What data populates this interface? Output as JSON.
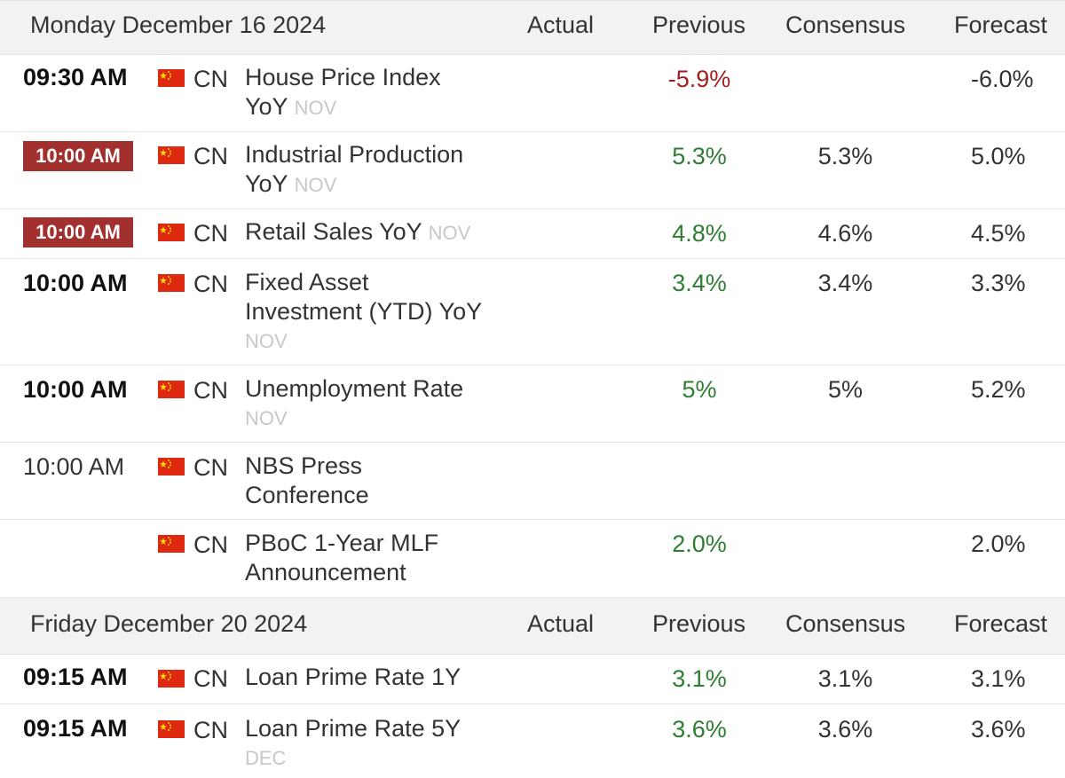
{
  "columns": {
    "actual": "Actual",
    "previous": "Previous",
    "consensus": "Consensus",
    "forecast": "Forecast"
  },
  "colors": {
    "badge": "#a1302e",
    "positive": "#2e7d32",
    "negative": "#a11f1f",
    "header_bg": "#f2f2f2"
  },
  "days": [
    {
      "date": "Monday December 16 2024",
      "events": [
        {
          "time": "09:30 AM",
          "time_style": "bold",
          "country": "CN",
          "flag": "china-flag-icon",
          "line1": "House Price Index",
          "line2": "YoY",
          "ref": "NOV",
          "ref_line": 2,
          "actual": "",
          "previous": "-5.9%",
          "previous_tone": "neg",
          "consensus": "",
          "forecast": "-6.0%"
        },
        {
          "time": "10:00 AM",
          "time_style": "badge",
          "country": "CN",
          "flag": "china-flag-icon",
          "line1": "Industrial Production",
          "line2": "YoY",
          "ref": "NOV",
          "ref_line": 2,
          "actual": "",
          "previous": "5.3%",
          "previous_tone": "pos",
          "consensus": "5.3%",
          "forecast": "5.0%"
        },
        {
          "time": "10:00 AM",
          "time_style": "badge",
          "country": "CN",
          "flag": "china-flag-icon",
          "line1": "Retail Sales YoY",
          "line2": "",
          "ref": "NOV",
          "ref_line": 1,
          "actual": "",
          "previous": "4.8%",
          "previous_tone": "pos",
          "consensus": "4.6%",
          "forecast": "4.5%"
        },
        {
          "time": "10:00 AM",
          "time_style": "bold",
          "country": "CN",
          "flag": "china-flag-icon",
          "line1": "Fixed Asset",
          "line2": "Investment (YTD) YoY",
          "ref": "NOV",
          "ref_line": 3,
          "actual": "",
          "previous": "3.4%",
          "previous_tone": "pos",
          "consensus": "3.4%",
          "forecast": "3.3%"
        },
        {
          "time": "10:00 AM",
          "time_style": "bold",
          "country": "CN",
          "flag": "china-flag-icon",
          "line1": "Unemployment Rate",
          "line2": "",
          "ref": "NOV",
          "ref_line": 2,
          "actual": "",
          "previous": "5%",
          "previous_tone": "pos",
          "consensus": "5%",
          "forecast": "5.2%"
        },
        {
          "time": "10:00 AM",
          "time_style": "plain",
          "country": "CN",
          "flag": "china-flag-icon",
          "line1": "NBS Press",
          "line2": "Conference",
          "ref": "",
          "ref_line": 0,
          "actual": "",
          "previous": "",
          "previous_tone": "pos",
          "consensus": "",
          "forecast": ""
        },
        {
          "time": "",
          "time_style": "plain",
          "country": "CN",
          "flag": "china-flag-icon",
          "line1": "PBoC 1-Year MLF",
          "line2": "Announcement",
          "ref": "",
          "ref_line": 0,
          "actual": "",
          "previous": "2.0%",
          "previous_tone": "pos",
          "consensus": "",
          "forecast": "2.0%"
        }
      ]
    },
    {
      "date": "Friday December 20 2024",
      "events": [
        {
          "time": "09:15 AM",
          "time_style": "bold",
          "country": "CN",
          "flag": "china-flag-icon",
          "line1": "Loan Prime Rate 1Y",
          "line2": "",
          "ref": "",
          "ref_line": 0,
          "actual": "",
          "previous": "3.1%",
          "previous_tone": "pos",
          "consensus": "3.1%",
          "forecast": "3.1%"
        },
        {
          "time": "09:15 AM",
          "time_style": "bold",
          "country": "CN",
          "flag": "china-flag-icon",
          "line1": "Loan Prime Rate 5Y",
          "line2": "",
          "ref": "DEC",
          "ref_line": 2,
          "actual": "",
          "previous": "3.6%",
          "previous_tone": "pos",
          "consensus": "3.6%",
          "forecast": "3.6%"
        }
      ]
    }
  ]
}
